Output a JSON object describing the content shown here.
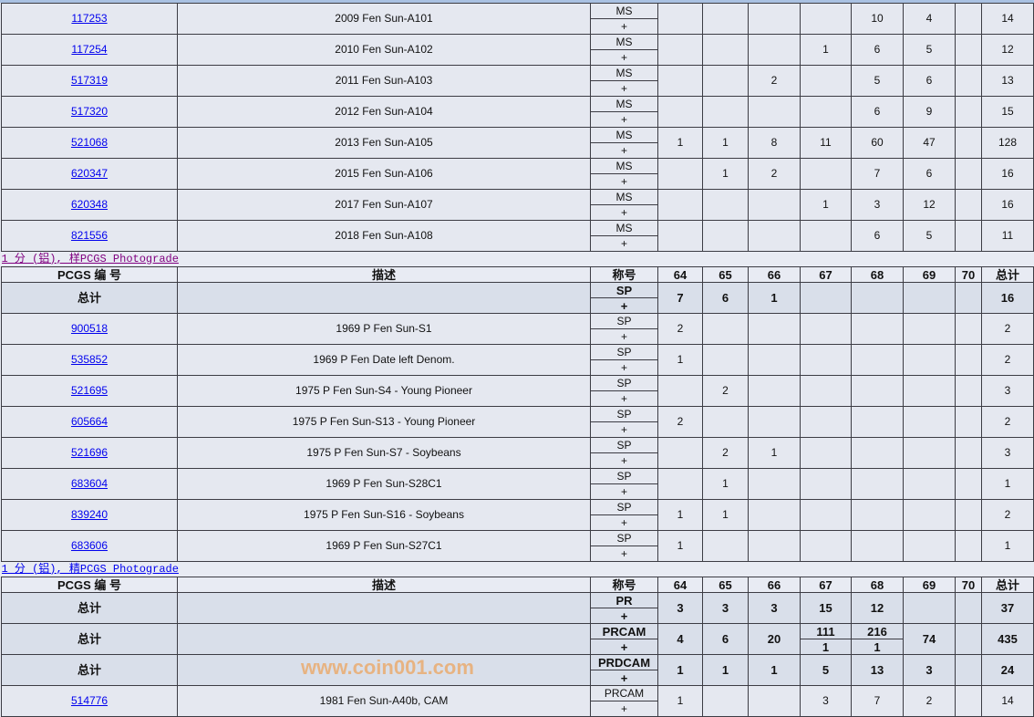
{
  "colors": {
    "link": "#0000ee",
    "visited_link": "#800080",
    "row_bg": "#e5e8f0",
    "total_bg": "#d9dfea",
    "border": "#3c3c44"
  },
  "sections": [
    {
      "caption": null,
      "header": null,
      "rows": [
        {
          "pcgs": "117253",
          "desc": "2009 Fen Sun-A101",
          "grade": "MS",
          "plus": "+",
          "counts": [
            "",
            "",
            "",
            "",
            "10",
            "4",
            ""
          ],
          "total": "14"
        },
        {
          "pcgs": "117254",
          "desc": "2010 Fen Sun-A102",
          "grade": "MS",
          "plus": "+",
          "counts": [
            "",
            "",
            "",
            "1",
            "6",
            "5",
            ""
          ],
          "total": "12"
        },
        {
          "pcgs": "517319",
          "desc": "2011 Fen Sun-A103",
          "grade": "MS",
          "plus": "+",
          "counts": [
            "",
            "",
            "2",
            "",
            "5",
            "6",
            ""
          ],
          "total": "13"
        },
        {
          "pcgs": "517320",
          "desc": "2012 Fen Sun-A104",
          "grade": "MS",
          "plus": "+",
          "counts": [
            "",
            "",
            "",
            "",
            "6",
            "9",
            ""
          ],
          "total": "15"
        },
        {
          "pcgs": "521068",
          "desc": "2013 Fen Sun-A105",
          "grade": "MS",
          "plus": "+",
          "counts": [
            "1",
            "1",
            "8",
            "11",
            "60",
            "47",
            ""
          ],
          "total": "128"
        },
        {
          "pcgs": "620347",
          "desc": "2015 Fen Sun-A106",
          "grade": "MS",
          "plus": "+",
          "counts": [
            "",
            "1",
            "2",
            "",
            "7",
            "6",
            ""
          ],
          "total": "16"
        },
        {
          "pcgs": "620348",
          "desc": "2017 Fen Sun-A107",
          "grade": "MS",
          "plus": "+",
          "counts": [
            "",
            "",
            "",
            "1",
            "3",
            "12",
            ""
          ],
          "total": "16"
        },
        {
          "pcgs": "821556",
          "desc": "2018 Fen Sun-A108",
          "grade": "MS",
          "plus": "+",
          "counts": [
            "",
            "",
            "",
            "",
            "6",
            "5",
            ""
          ],
          "total": "11"
        }
      ]
    },
    {
      "caption": "1 分 (铝), 样PCGS Photograde",
      "caption_color": "#800080",
      "header": [
        "PCGS 编 号",
        "描述",
        "称号",
        "64",
        "65",
        "66",
        "67",
        "68",
        "69",
        "70",
        "总计"
      ],
      "rows": [
        {
          "total_row": true,
          "pcgs": "总计",
          "desc": "",
          "grade": "SP",
          "plus": "+",
          "counts": [
            "7",
            "6",
            "1",
            "",
            "",
            "",
            ""
          ],
          "total": "16"
        },
        {
          "pcgs": "900518",
          "desc": "1969 P Fen Sun-S1",
          "grade": "SP",
          "plus": "+",
          "counts": [
            "2",
            "",
            "",
            "",
            "",
            "",
            ""
          ],
          "total": "2"
        },
        {
          "pcgs": "535852",
          "desc": "1969 P Fen Date left Denom.",
          "grade": "SP",
          "plus": "+",
          "counts": [
            "1",
            "",
            "",
            "",
            "",
            "",
            ""
          ],
          "total": "2"
        },
        {
          "pcgs": "521695",
          "desc": "1975 P Fen Sun-S4 - Young Pioneer",
          "grade": "SP",
          "plus": "+",
          "counts": [
            "",
            "2",
            "",
            "",
            "",
            "",
            ""
          ],
          "total": "3"
        },
        {
          "pcgs": "605664",
          "desc": "1975 P Fen Sun-S13 - Young Pioneer",
          "grade": "SP",
          "plus": "+",
          "counts": [
            "2",
            "",
            "",
            "",
            "",
            "",
            ""
          ],
          "total": "2"
        },
        {
          "pcgs": "521696",
          "desc": "1975 P Fen Sun-S7 - Soybeans",
          "grade": "SP",
          "plus": "+",
          "counts": [
            "",
            "2",
            "1",
            "",
            "",
            "",
            ""
          ],
          "total": "3"
        },
        {
          "pcgs": "683604",
          "desc": "1969 P Fen Sun-S28C1",
          "grade": "SP",
          "plus": "+",
          "counts": [
            "",
            "1",
            "",
            "",
            "",
            "",
            ""
          ],
          "total": "1"
        },
        {
          "pcgs": "839240",
          "desc": "1975 P Fen Sun-S16 - Soybeans",
          "grade": "SP",
          "plus": "+",
          "counts": [
            "1",
            "1",
            "",
            "",
            "",
            "",
            ""
          ],
          "total": "2"
        },
        {
          "pcgs": "683606",
          "desc": "1969 P Fen Sun-S27C1",
          "grade": "SP",
          "plus": "+",
          "counts": [
            "1",
            "",
            "",
            "",
            "",
            "",
            ""
          ],
          "total": "1"
        }
      ]
    },
    {
      "caption": "1 分 (铝), 精PCGS Photograde",
      "caption_color": "#0000ee",
      "header": [
        "PCGS 编 号",
        "描述",
        "称号",
        "64",
        "65",
        "66",
        "67",
        "68",
        "69",
        "70",
        "总计"
      ],
      "rows": [
        {
          "total_row": true,
          "pcgs": "总计",
          "desc": "",
          "grade": "PR",
          "plus": "+",
          "counts": [
            "3",
            "3",
            "3",
            "15",
            "12",
            "",
            ""
          ],
          "total": "37"
        },
        {
          "total_row": true,
          "pcgs": "总计",
          "desc": "",
          "grade": "PRCAM",
          "plus": "+",
          "counts": [
            "4",
            "6",
            "20",
            {
              "top": "111",
              "bottom": "1"
            },
            {
              "top": "216",
              "bottom": "1"
            },
            "74",
            ""
          ],
          "total": "435"
        },
        {
          "total_row": true,
          "pcgs": "总计",
          "desc": "",
          "grade": "PRDCAM",
          "plus": "+",
          "counts": [
            "1",
            "1",
            "1",
            "5",
            "13",
            "3",
            ""
          ],
          "total": "24"
        },
        {
          "pcgs": "514776",
          "desc": "1981 Fen Sun-A40b, CAM",
          "grade": "PRCAM",
          "plus": "+",
          "counts": [
            "1",
            "",
            "",
            "3",
            "7",
            "2",
            ""
          ],
          "total": "14"
        }
      ]
    }
  ],
  "watermark": "www.coin001.com"
}
